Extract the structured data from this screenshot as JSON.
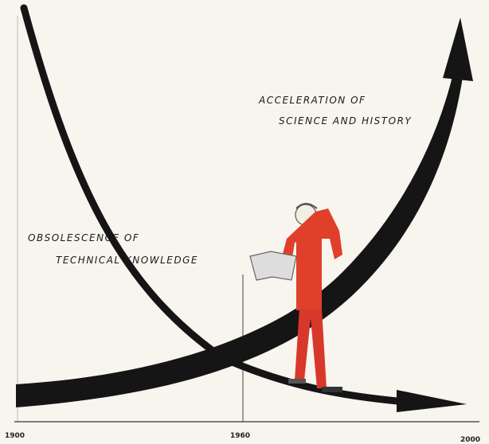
{
  "annotations": {
    "acceleration": [
      "ACCELERATION OF",
      "SCIENCE AND HISTORY"
    ],
    "obsolescence": [
      "OBSOLESCENCE OF",
      "TECHNICAL KNOWLEDGE"
    ]
  },
  "axis": {
    "labels": [
      "1900",
      "1960",
      "2000"
    ]
  }
}
